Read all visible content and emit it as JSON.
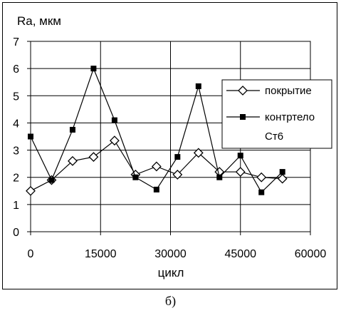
{
  "chart_data": {
    "type": "line",
    "title": "",
    "xlabel": "цикл",
    "ylabel": "Ra, мкм",
    "xlim": [
      0,
      60000
    ],
    "ylim": [
      0,
      7
    ],
    "xticks": [
      0,
      15000,
      30000,
      45000,
      60000
    ],
    "yticks": [
      0,
      1,
      2,
      3,
      4,
      5,
      6,
      7
    ],
    "grid": true,
    "legend_position": "right",
    "series": [
      {
        "name": "покрытие",
        "marker": "diamond-open",
        "color": "#000000",
        "x": [
          0,
          4500,
          9000,
          13500,
          18000,
          22500,
          27000,
          31500,
          36000,
          40500,
          45000,
          49500,
          54000
        ],
        "y": [
          1.5,
          1.9,
          2.6,
          2.75,
          3.35,
          2.1,
          2.4,
          2.1,
          2.9,
          2.2,
          2.2,
          2.0,
          1.95
        ]
      },
      {
        "name": "контртело Ст6",
        "marker": "square-filled",
        "color": "#000000",
        "x": [
          0,
          4500,
          9000,
          13500,
          18000,
          22500,
          27000,
          31500,
          36000,
          40500,
          45000,
          49500,
          54000
        ],
        "y": [
          3.5,
          1.9,
          3.75,
          6.0,
          4.1,
          2.0,
          1.55,
          2.75,
          5.35,
          2.0,
          2.8,
          1.45,
          2.2
        ]
      }
    ]
  },
  "legend": {
    "line1": "покрытие",
    "line2a": "контртело",
    "line2b": "Ст6"
  },
  "caption": "б)"
}
